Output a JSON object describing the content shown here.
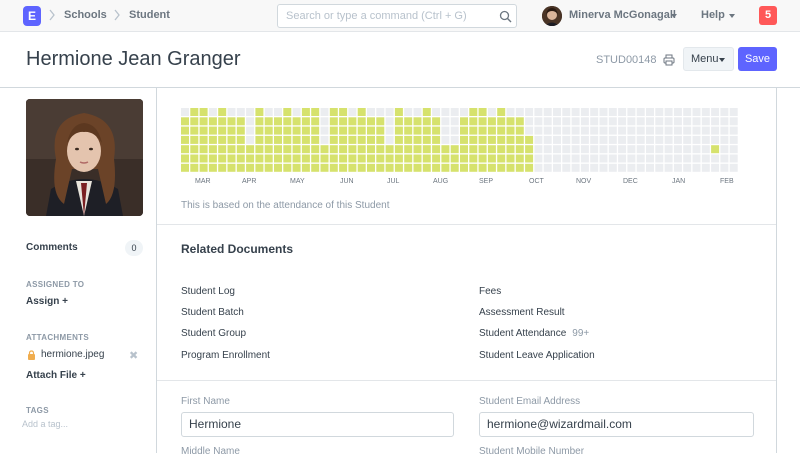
{
  "navbar": {
    "logo_letter": "E",
    "breadcrumbs": [
      "Schools",
      "Student"
    ],
    "search_placeholder": "Search or type a command (Ctrl + G)",
    "user_name": "Minerva McGonagall",
    "help_label": "Help",
    "notification_count": "5"
  },
  "header": {
    "title": "Hermione Jean Granger",
    "doc_id": "STUD00148",
    "menu_label": "Menu",
    "save_label": "Save"
  },
  "sidebar": {
    "comments_label": "Comments",
    "comments_count": "0",
    "assigned_to_heading": "ASSIGNED TO",
    "assign_label": "Assign +",
    "attachments_heading": "ATTACHMENTS",
    "attachment_file": "hermione.jpeg",
    "attach_file_label": "Attach File +",
    "tags_heading": "TAGS",
    "tag_placeholder": "Add a tag..."
  },
  "heatmap": {
    "months": [
      "MAR",
      "APR",
      "MAY",
      "JUN",
      "JUL",
      "AUG",
      "SEP",
      "OCT",
      "NOV",
      "DEC",
      "JAN",
      "FEB"
    ],
    "note": "This is based on the attendance of this Student",
    "active_color": "#d6e26d",
    "inactive_color": "#ebedf0"
  },
  "related_documents": {
    "title": "Related Documents",
    "left": [
      "Student Log",
      "Student Batch",
      "Student Group",
      "Program Enrollment"
    ],
    "right": [
      "Fees",
      "Assessment Result",
      "Student Attendance",
      "Student Leave Application"
    ],
    "attendance_count": "99+"
  },
  "form": {
    "first_name_label": "First Name",
    "first_name_value": "Hermione",
    "email_label": "Student Email Address",
    "email_value": "hermione@wizardmail.com",
    "middle_name_label": "Middle Name",
    "mobile_label": "Student Mobile Number"
  }
}
